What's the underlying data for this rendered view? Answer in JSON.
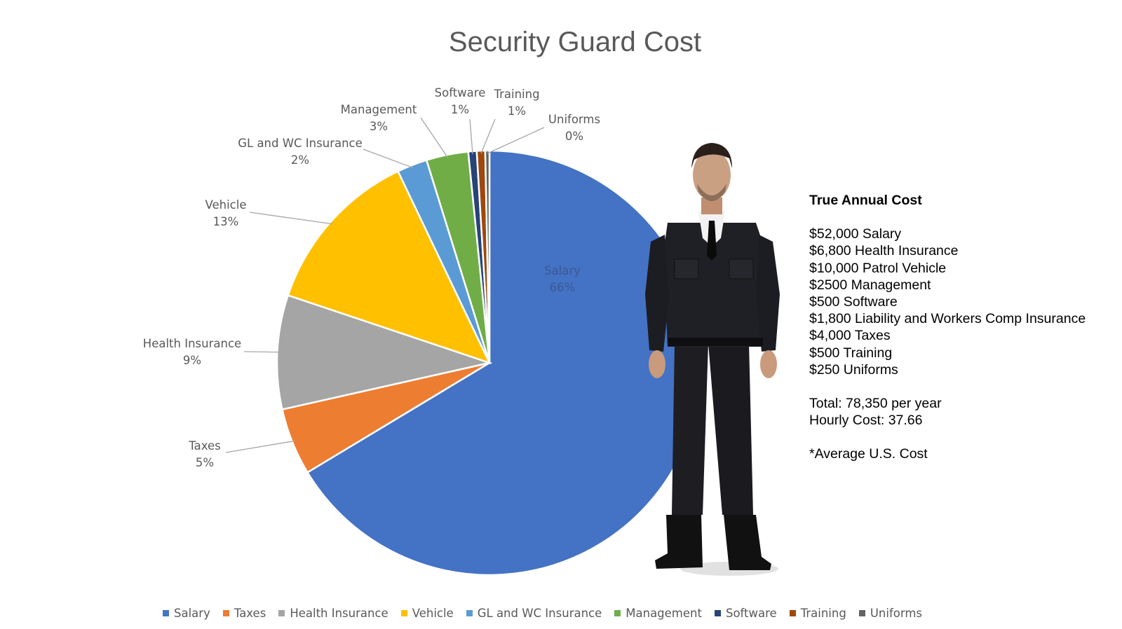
{
  "chart_data": {
    "type": "pie",
    "title": "Security Guard Cost",
    "slices": [
      {
        "name": "Salary",
        "value": 52000,
        "pct_label": "66%",
        "color": "#4472C4"
      },
      {
        "name": "Taxes",
        "value": 4000,
        "pct_label": "5%",
        "color": "#ED7D31"
      },
      {
        "name": "Health Insurance",
        "value": 6800,
        "pct_label": "9%",
        "color": "#A5A5A5"
      },
      {
        "name": "Vehicle",
        "value": 10000,
        "pct_label": "13%",
        "color": "#FFC000"
      },
      {
        "name": "GL and WC Insurance",
        "value": 1800,
        "pct_label": "2%",
        "color": "#5B9BD5"
      },
      {
        "name": "Management",
        "value": 2500,
        "pct_label": "3%",
        "color": "#70AD47"
      },
      {
        "name": "Software",
        "value": 500,
        "pct_label": "1%",
        "color": "#264478"
      },
      {
        "name": "Training",
        "value": 500,
        "pct_label": "1%",
        "color": "#9E480E"
      },
      {
        "name": "Uniforms",
        "value": 250,
        "pct_label": "0%",
        "color": "#636363"
      }
    ],
    "legend_position": "bottom"
  },
  "info": {
    "heading": "True Annual Cost",
    "items": [
      "$52,000 Salary",
      "$6,800 Health Insurance",
      "$10,000 Patrol Vehicle",
      "$2500 Management",
      "$500 Software",
      "$1,800 Liability and Workers Comp Insurance",
      "$4,000 Taxes",
      "$500 Training",
      "$250 Uniforms"
    ],
    "total": "Total: 78,350 per year",
    "hourly": "Hourly Cost: 37.66",
    "note": "*Average U.S. Cost"
  },
  "image": {
    "icon": "security-guard-photo"
  }
}
